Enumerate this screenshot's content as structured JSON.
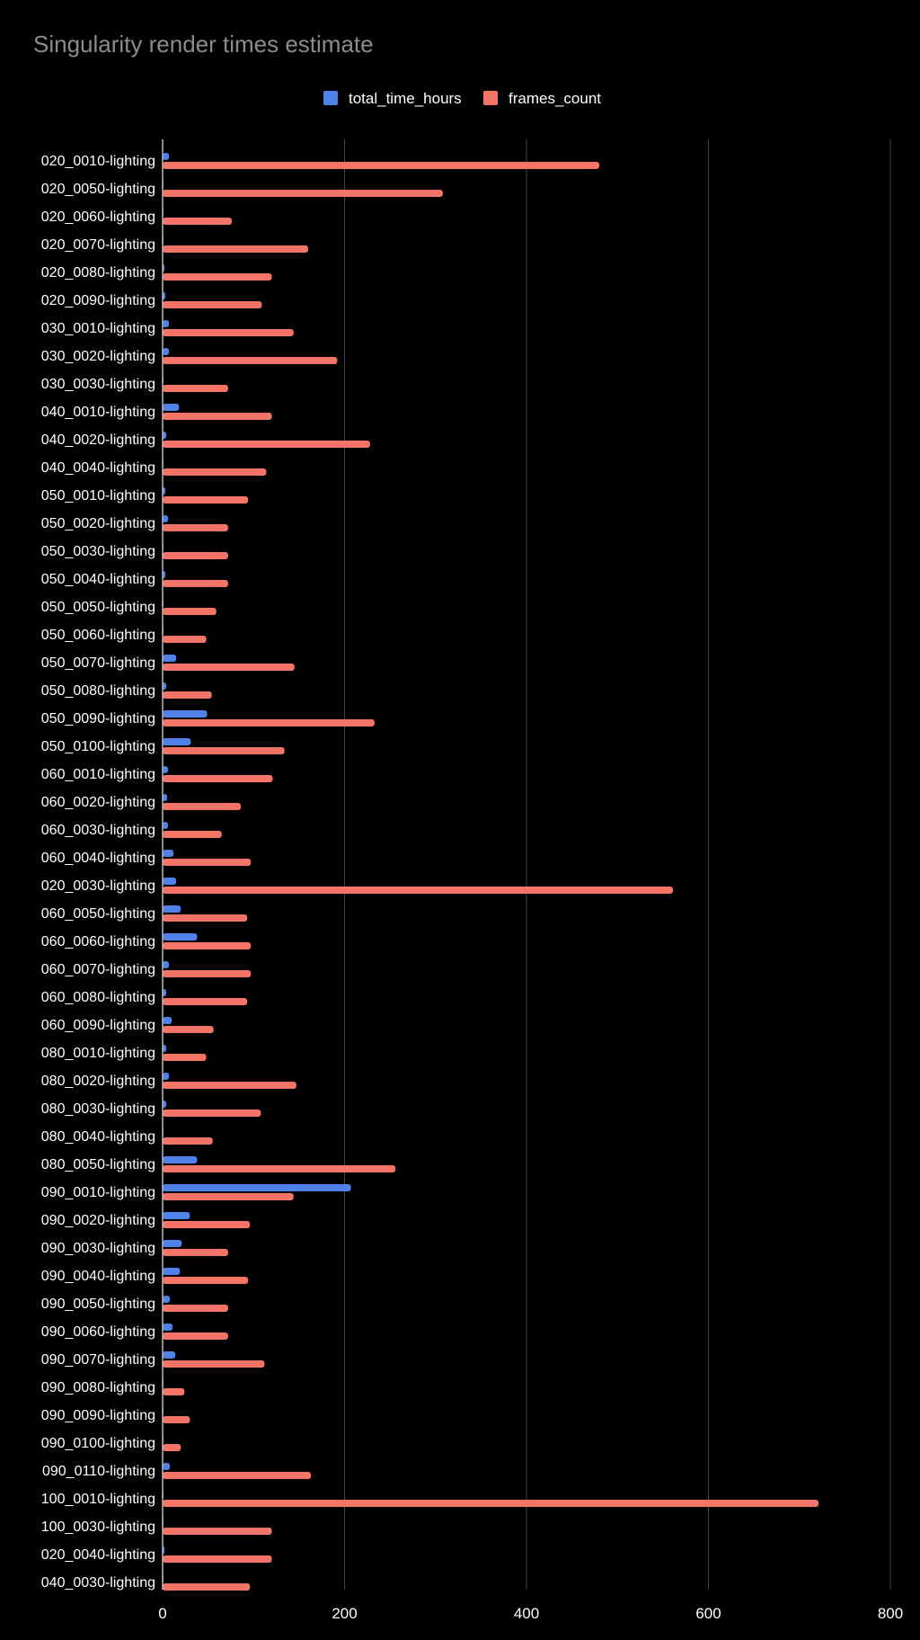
{
  "chart_data": {
    "type": "bar",
    "orientation": "horizontal",
    "title": "Singularity render times estimate",
    "xlabel": "",
    "ylabel": "",
    "xlim": [
      0,
      800
    ],
    "x_ticks": [
      "0",
      "200",
      "400",
      "600",
      "800"
    ],
    "grid": true,
    "legend_position": "top",
    "colors": {
      "background": "#000000",
      "total_time_hours": "#5081e8",
      "frames_count": "#f47468"
    },
    "categories": [
      "020_0010-lighting",
      "020_0050-lighting",
      "020_0060-lighting",
      "020_0070-lighting",
      "020_0080-lighting",
      "020_0090-lighting",
      "030_0010-lighting",
      "030_0020-lighting",
      "030_0030-lighting",
      "040_0010-lighting",
      "040_0020-lighting",
      "040_0040-lighting",
      "050_0010-lighting",
      "050_0020-lighting",
      "050_0030-lighting",
      "050_0040-lighting",
      "050_0050-lighting",
      "050_0060-lighting",
      "050_0070-lighting",
      "050_0080-lighting",
      "050_0090-lighting",
      "050_0100-lighting",
      "060_0010-lighting",
      "060_0020-lighting",
      "060_0030-lighting",
      "060_0040-lighting",
      "020_0030-lighting",
      "060_0050-lighting",
      "060_0060-lighting",
      "060_0070-lighting",
      "060_0080-lighting",
      "060_0090-lighting",
      "080_0010-lighting",
      "080_0020-lighting",
      "080_0030-lighting",
      "080_0040-lighting",
      "080_0050-lighting",
      "090_0010-lighting",
      "090_0020-lighting",
      "090_0030-lighting",
      "090_0040-lighting",
      "090_0050-lighting",
      "090_0060-lighting",
      "090_0070-lighting",
      "090_0080-lighting",
      "090_0090-lighting",
      "090_0100-lighting",
      "090_0110-lighting",
      "100_0010-lighting",
      "100_0030-lighting",
      "020_0040-lighting",
      "040_0030-lighting"
    ],
    "series": [
      {
        "name": "total_time_hours",
        "values": [
          7,
          0,
          1,
          0,
          2,
          3,
          7,
          7,
          0,
          18,
          4,
          0,
          3,
          6,
          1,
          3,
          1,
          1,
          15,
          4,
          49,
          31,
          6,
          5,
          6,
          12,
          15,
          20,
          38,
          7,
          4,
          10,
          4,
          7,
          4,
          1,
          38,
          207,
          30,
          21,
          19,
          8,
          11,
          14,
          1,
          1,
          1,
          8,
          0,
          0,
          2,
          1
        ]
      },
      {
        "name": "frames_count",
        "values": [
          480,
          308,
          76,
          160,
          120,
          109,
          144,
          192,
          72,
          120,
          228,
          114,
          94,
          72,
          72,
          72,
          59,
          48,
          145,
          54,
          233,
          134,
          121,
          86,
          65,
          97,
          561,
          93,
          97,
          97,
          93,
          56,
          48,
          147,
          108,
          55,
          256,
          144,
          96,
          72,
          94,
          72,
          72,
          112,
          24,
          30,
          20,
          163,
          721,
          120,
          120,
          96
        ]
      }
    ]
  }
}
